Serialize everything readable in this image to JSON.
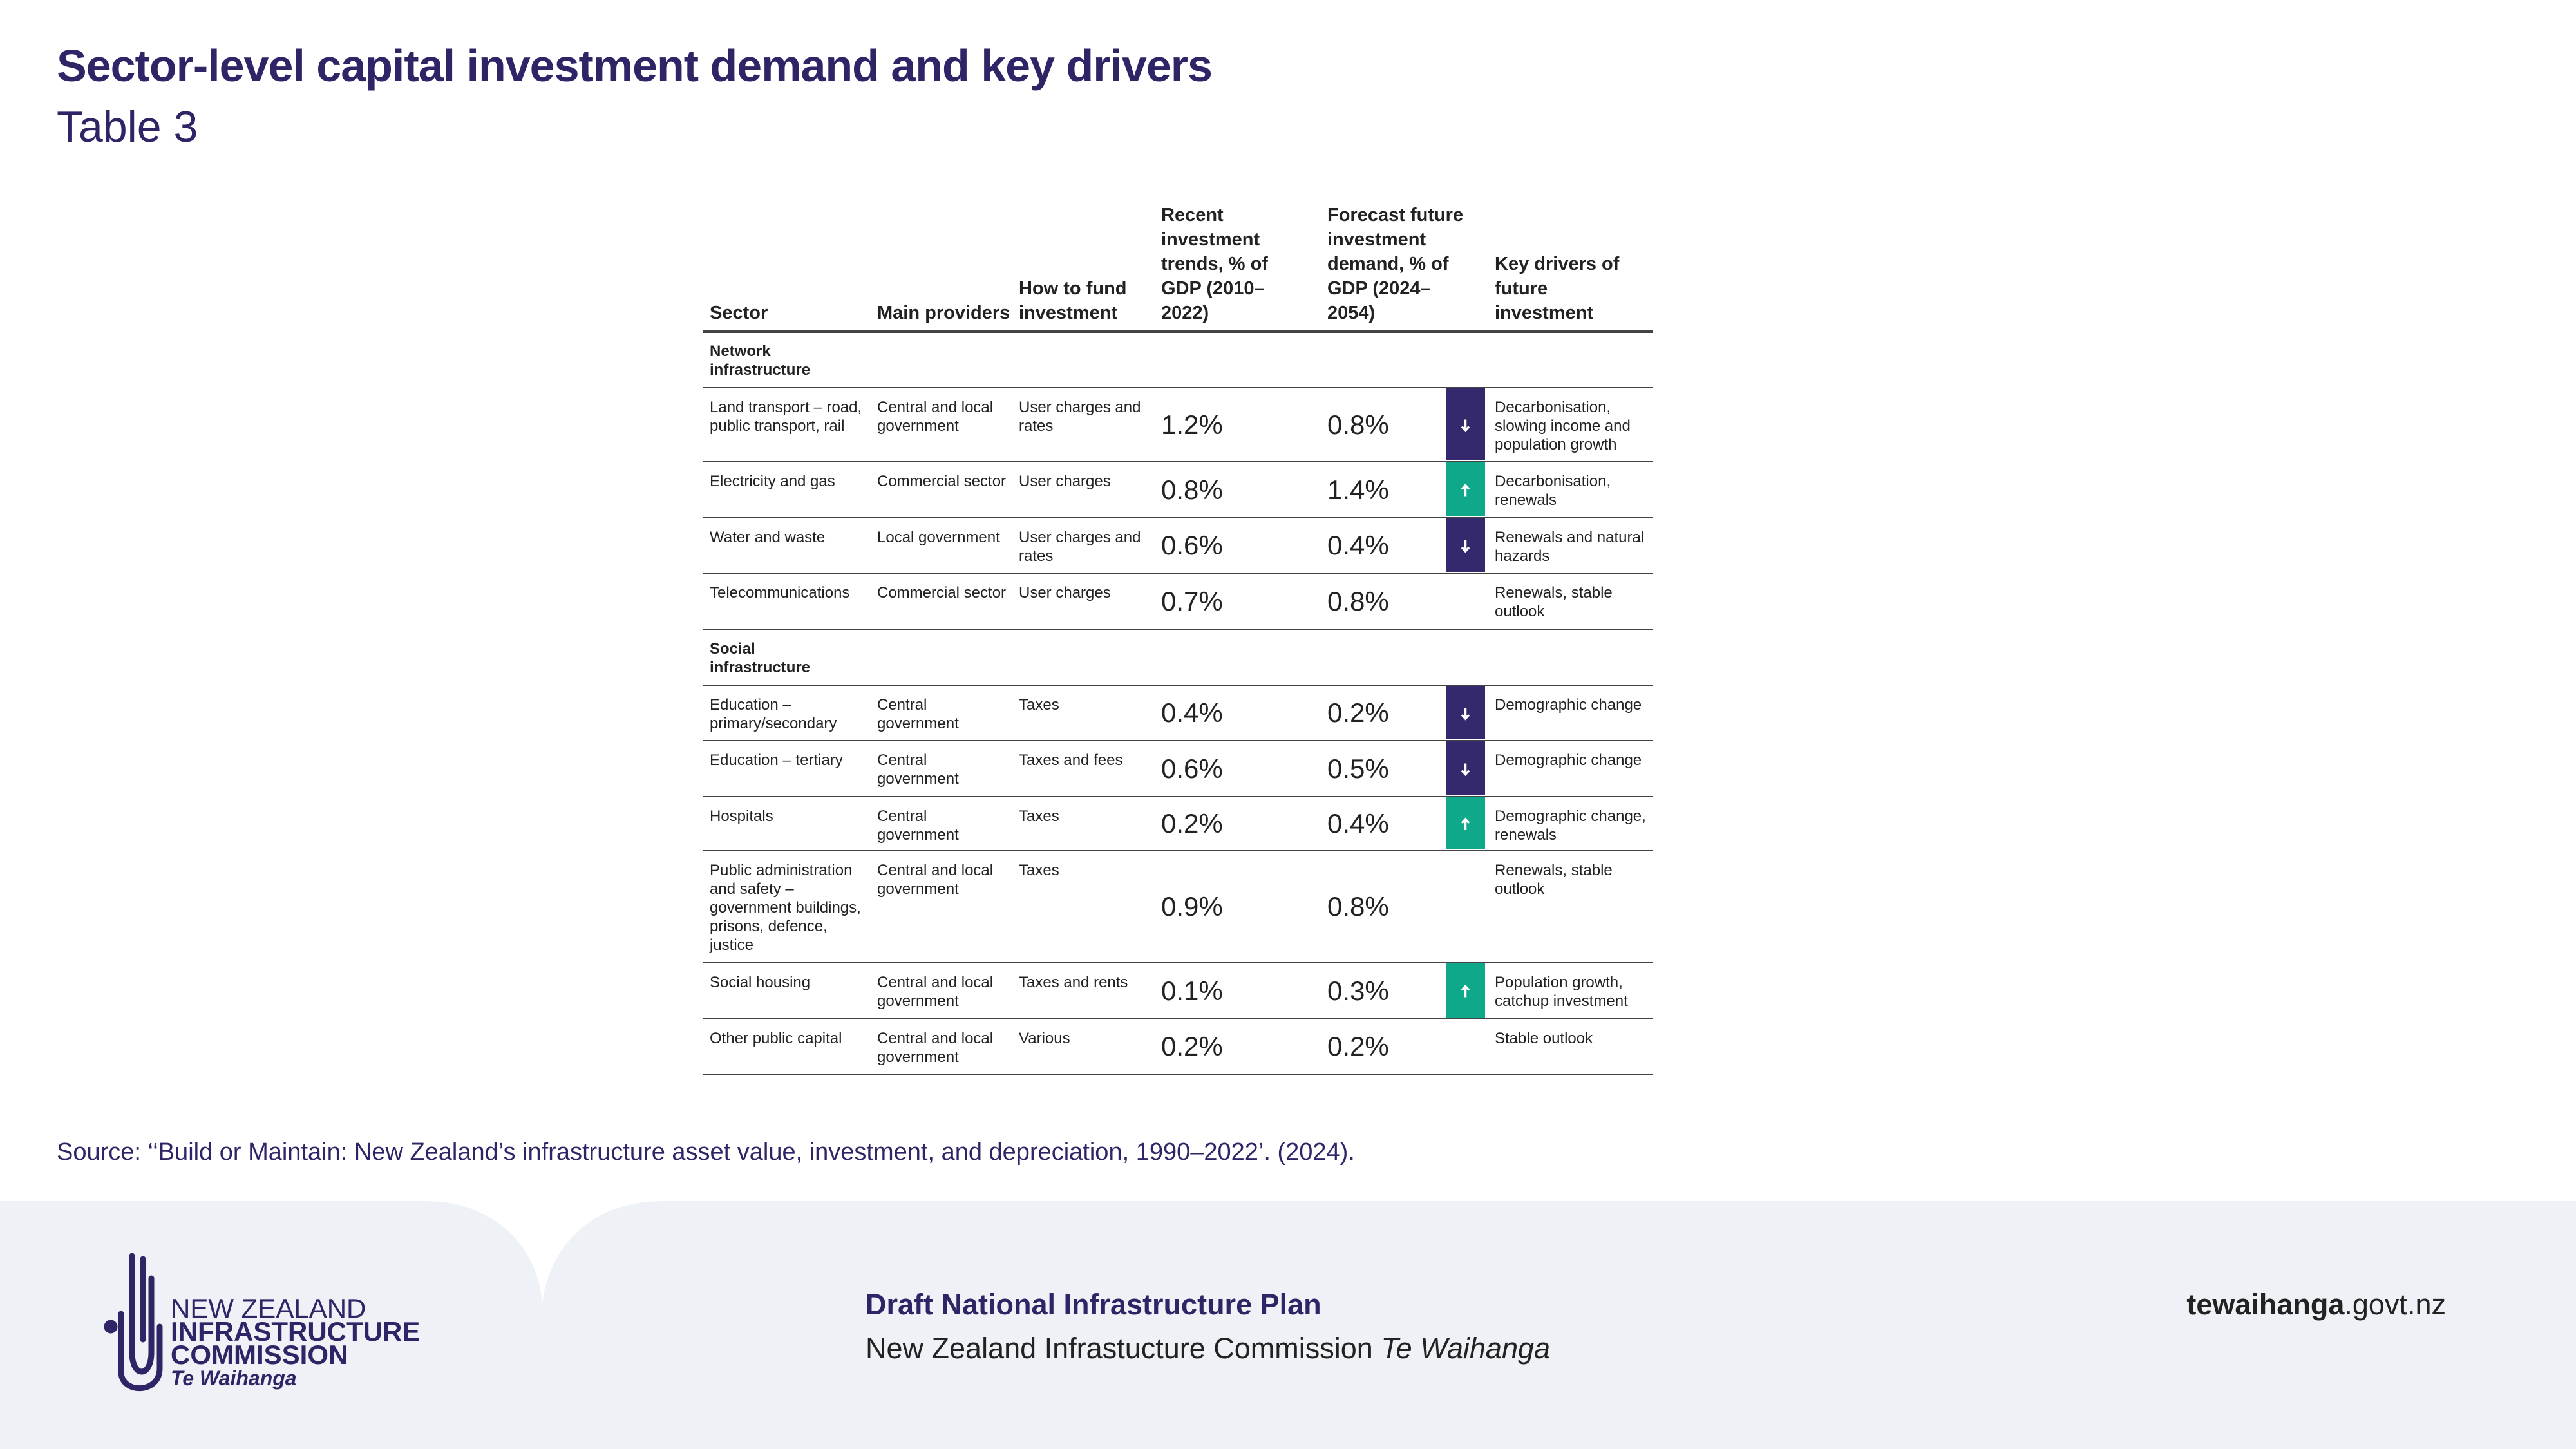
{
  "header": {
    "title": "Sector-level capital investment demand and key drivers",
    "subtitle": "Table 3"
  },
  "table": {
    "columns": [
      "Sector",
      "Main providers",
      "How to fund investment",
      "Recent investment trends, % of GDP (2010–2022)",
      "Forecast future investment demand, % of GDP (2024–2054)",
      "Key drivers of future investment"
    ],
    "sections": [
      {
        "title": "Network infrastructure",
        "rows": [
          {
            "sector": "Land transport – road, public transport, rail",
            "providers": "Central and local government",
            "funding": "User charges and rates",
            "recent": "1.2%",
            "forecast": "0.8%",
            "arrow": "down",
            "drivers": "Decarbonisation, slowing income and population growth"
          },
          {
            "sector": "Electricity and gas",
            "providers": "Commercial sector",
            "funding": "User charges",
            "recent": "0.8%",
            "forecast": "1.4%",
            "arrow": "up",
            "drivers": "Decarbonisation, renewals"
          },
          {
            "sector": "Water and waste",
            "providers": "Local government",
            "funding": "User charges and rates",
            "recent": "0.6%",
            "forecast": "0.4%",
            "arrow": "down",
            "drivers": "Renewals and natural hazards"
          },
          {
            "sector": "Telecommunications",
            "providers": "Commercial sector",
            "funding": "User charges",
            "recent": "0.7%",
            "forecast": "0.8%",
            "arrow": null,
            "drivers": "Renewals, stable outlook"
          }
        ]
      },
      {
        "title": "Social infrastructure",
        "rows": [
          {
            "sector": "Education – primary/secondary",
            "providers": "Central government",
            "funding": "Taxes",
            "recent": "0.4%",
            "forecast": "0.2%",
            "arrow": "down",
            "drivers": "Demographic change"
          },
          {
            "sector": "Education – tertiary",
            "providers": "Central government",
            "funding": "Taxes and fees",
            "recent": "0.6%",
            "forecast": "0.5%",
            "arrow": "down",
            "drivers": "Demographic change"
          },
          {
            "sector": "Hospitals",
            "providers": "Central government",
            "funding": "Taxes",
            "recent": "0.2%",
            "forecast": "0.4%",
            "arrow": "up",
            "drivers": "Demographic change, renewals"
          },
          {
            "sector": "Public administration and safety – government buildings, prisons, defence, justice",
            "providers": "Central and local government",
            "funding": "Taxes",
            "recent": "0.9%",
            "forecast": "0.8%",
            "arrow": null,
            "drivers": "Renewals, stable outlook"
          },
          {
            "sector": "Social housing",
            "providers": "Central and local government",
            "funding": "Taxes and rents",
            "recent": "0.1%",
            "forecast": "0.3%",
            "arrow": "up",
            "drivers": "Population growth, catchup investment"
          },
          {
            "sector": "Other public capital",
            "providers": "Central and local government",
            "funding": "Various",
            "recent": "0.2%",
            "forecast": "0.2%",
            "arrow": null,
            "drivers": "Stable outlook"
          }
        ]
      }
    ]
  },
  "source": "Source: ‘‘Build or Maintain: New Zealand’s infrastructure asset value, investment, and depreciation, 1990–2022’.  (2024).",
  "footer": {
    "logo": {
      "line1": "NEW ZEALAND",
      "line2": "INFRASTRUCTURE",
      "line3": "COMMISSION",
      "line4": "Te Waihanga"
    },
    "plan": "Draft National Infrastructure Plan",
    "org": "New Zealand Infrastucture Commission",
    "org_maori": "Te Waihanga",
    "url_bold": "tewaihanga",
    "url_rest": ".govt.nz"
  }
}
